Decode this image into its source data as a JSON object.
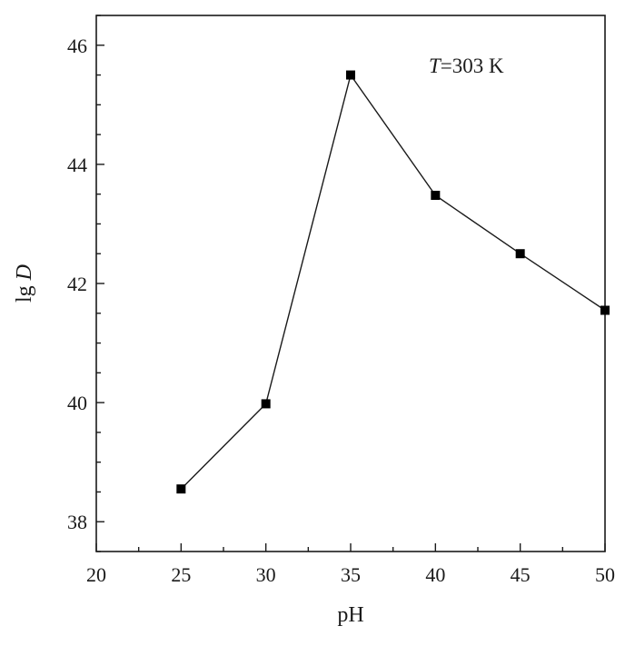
{
  "chart_data": {
    "type": "line",
    "xlabel": "pH",
    "ylabel_prefix": "lg ",
    "ylabel_var": "D",
    "annotation": {
      "var": "T",
      "text": "=303 K",
      "position": "top-right"
    },
    "xlim": [
      20,
      50
    ],
    "ylim": [
      37.5,
      46.5
    ],
    "xticks": [
      20,
      25,
      30,
      35,
      40,
      45,
      50
    ],
    "yticks": [
      38,
      40,
      42,
      44,
      46
    ],
    "x_minor_step": 2.5,
    "y_minor_step": 0.5,
    "grid": false,
    "series": [
      {
        "marker": "square",
        "color": "#000000",
        "x": [
          25,
          30,
          35,
          40,
          45,
          50
        ],
        "y": [
          38.55,
          39.98,
          45.5,
          43.48,
          42.5,
          41.55
        ]
      }
    ]
  }
}
